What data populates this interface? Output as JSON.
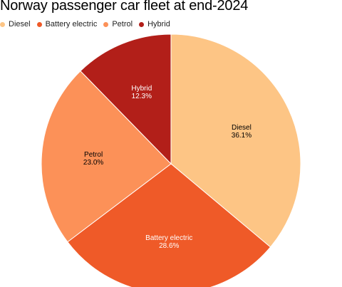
{
  "chart_data": {
    "type": "pie",
    "title": "Norway passenger car fleet at end-2024",
    "legend_position": "top-left",
    "slices": [
      {
        "label": "Diesel",
        "value": 36.1,
        "value_label": "36.1%",
        "color": "#fdc585",
        "text_color": "#000000"
      },
      {
        "label": "Battery electric",
        "value": 28.6,
        "value_label": "28.6%",
        "color": "#ef5a28",
        "text_color": "#ffffff"
      },
      {
        "label": "Petrol",
        "value": 23.0,
        "value_label": "23.0%",
        "color": "#fc9158",
        "text_color": "#000000"
      },
      {
        "label": "Hybrid",
        "value": 12.3,
        "value_label": "12.3%",
        "color": "#b21f19",
        "text_color": "#ffffff"
      }
    ]
  }
}
